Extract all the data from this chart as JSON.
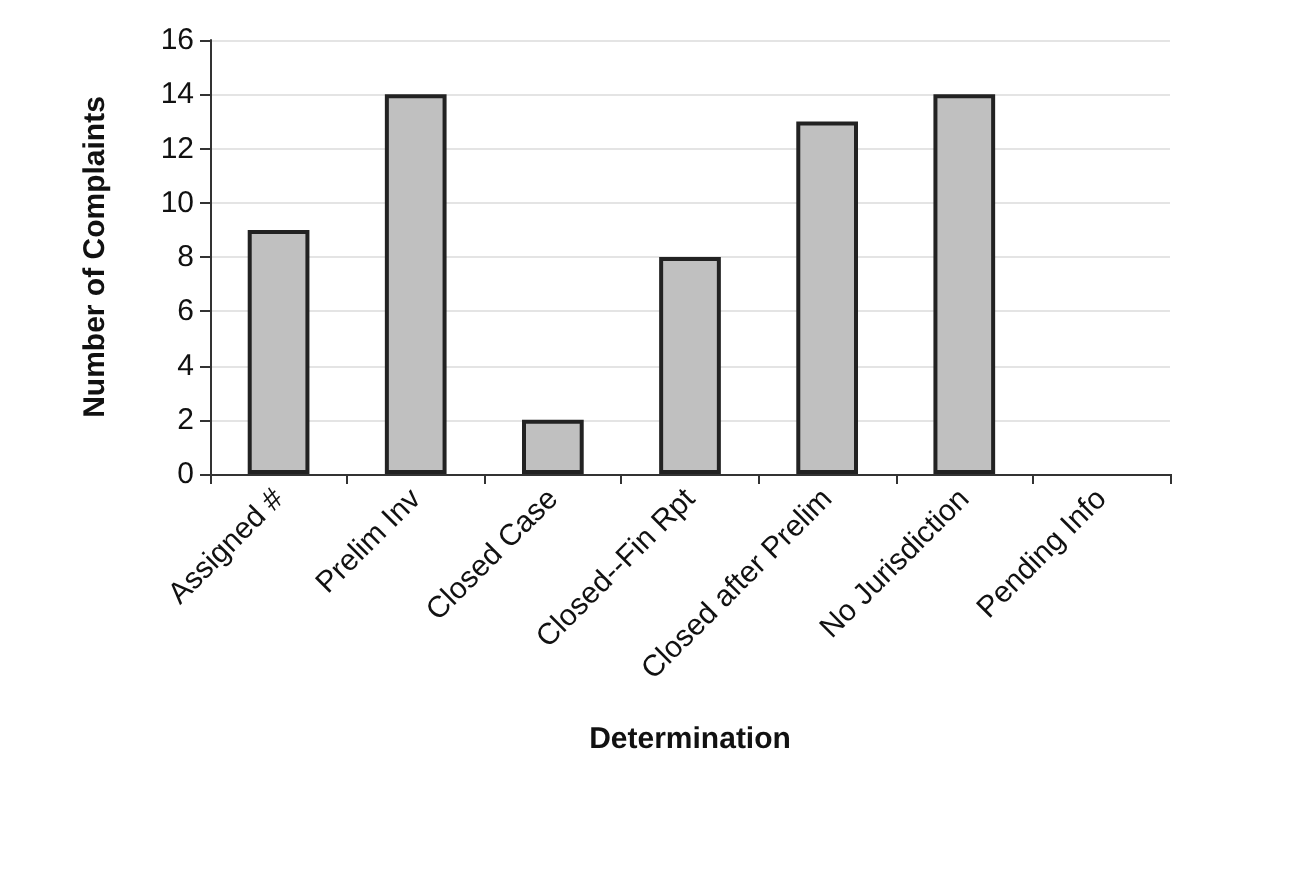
{
  "chart_data": {
    "type": "bar",
    "xlabel": "Determination",
    "ylabel": "Number of Complaints",
    "categories": [
      "Assigned #",
      "Prelim Inv",
      "Closed Case",
      "Closed--Fin Rpt",
      "Closed after Prelim",
      "No Jurisdiction",
      "Pending Info"
    ],
    "values": [
      9,
      14,
      2,
      8,
      13,
      14,
      0
    ],
    "color": "#c0c0c0",
    "ylim": [
      0,
      16
    ],
    "yticks": [
      0,
      2,
      4,
      6,
      8,
      10,
      12,
      14,
      16
    ],
    "grid": "y"
  }
}
